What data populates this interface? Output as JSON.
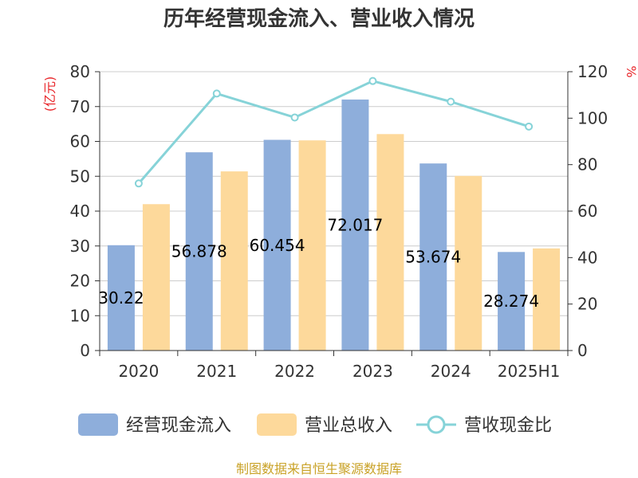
{
  "chart_data": {
    "type": "bar",
    "title": "历年经营现金流入、营业收入情况",
    "categories": [
      "2020",
      "2021",
      "2022",
      "2023",
      "2024",
      "2025H1"
    ],
    "y_left": {
      "unit": "(亿元)",
      "ylim": [
        0,
        80
      ],
      "ticks": [
        0,
        10,
        20,
        30,
        40,
        50,
        60,
        70,
        80
      ]
    },
    "y_right": {
      "unit": "%",
      "ylim": [
        0,
        120
      ],
      "ticks": [
        0,
        20,
        40,
        60,
        80,
        100,
        120
      ]
    },
    "series": [
      {
        "name": "经营现金流入",
        "type": "bar",
        "axis": "left",
        "color": "#8eaedb",
        "values": [
          30.22,
          56.878,
          60.454,
          72.017,
          53.674,
          28.274
        ],
        "labels": [
          "30.22",
          "56.878",
          "60.454",
          "72.017",
          "53.674",
          "28.274"
        ]
      },
      {
        "name": "营业总收入",
        "type": "bar",
        "axis": "left",
        "color": "#fdd99b",
        "values": [
          42.0,
          51.4,
          60.3,
          62.1,
          50.1,
          29.3
        ]
      },
      {
        "name": "营收现金比",
        "type": "line",
        "axis": "right",
        "color": "#86d3d8",
        "values": [
          71.9,
          110.6,
          100.3,
          116.0,
          107.1,
          96.4
        ]
      }
    ],
    "grid": true,
    "legend_position": "bottom"
  },
  "source": "制图数据来自恒生聚源数据库"
}
